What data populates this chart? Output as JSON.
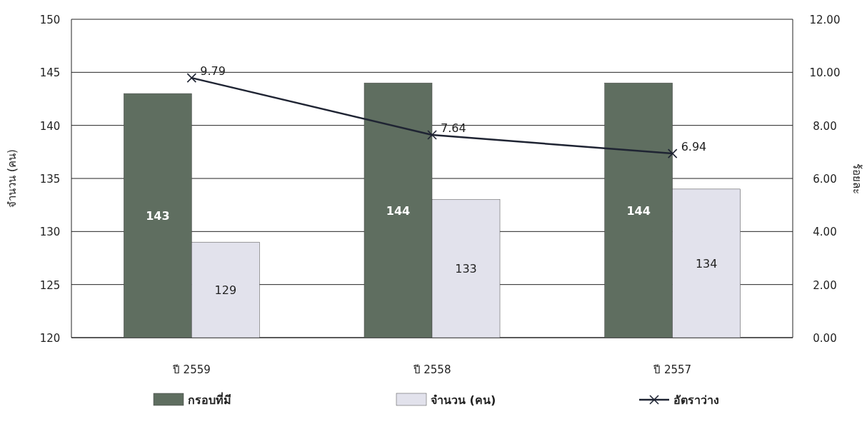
{
  "chart_data": {
    "type": "bar",
    "categories": [
      "ปี 2559",
      "ปี 2558",
      "ปี 2557"
    ],
    "series": [
      {
        "name": "กรอบที่มี",
        "color": "#5f6e60",
        "values": [
          143,
          144,
          144
        ]
      },
      {
        "name": "จำนวน (คน)",
        "color": "#e2e2ec",
        "values": [
          129,
          133,
          134
        ]
      },
      {
        "name": "อัตราว่าง",
        "type": "line",
        "axis": "y2",
        "color": "#1f2433",
        "marker": "cross",
        "values": [
          9.79,
          7.64,
          6.94
        ]
      }
    ],
    "ylabel": "จำนวน (คน)",
    "y2label": "ร้อยละ",
    "ylim": [
      120,
      150
    ],
    "yticks": [
      120,
      125,
      130,
      135,
      140,
      145,
      150
    ],
    "y2lim": [
      0,
      12
    ],
    "y2ticks": [
      {
        "value": 0,
        "label": "0.00"
      },
      {
        "value": 2,
        "label": "2.00"
      },
      {
        "value": 4,
        "label": "4.00"
      },
      {
        "value": 6,
        "label": "6.00"
      },
      {
        "value": 8,
        "label": "8.00"
      },
      {
        "value": 10,
        "label": "10.00"
      },
      {
        "value": 12,
        "label": "12.00"
      }
    ],
    "grid": "y",
    "legend": "bottom",
    "data_labels": true
  }
}
